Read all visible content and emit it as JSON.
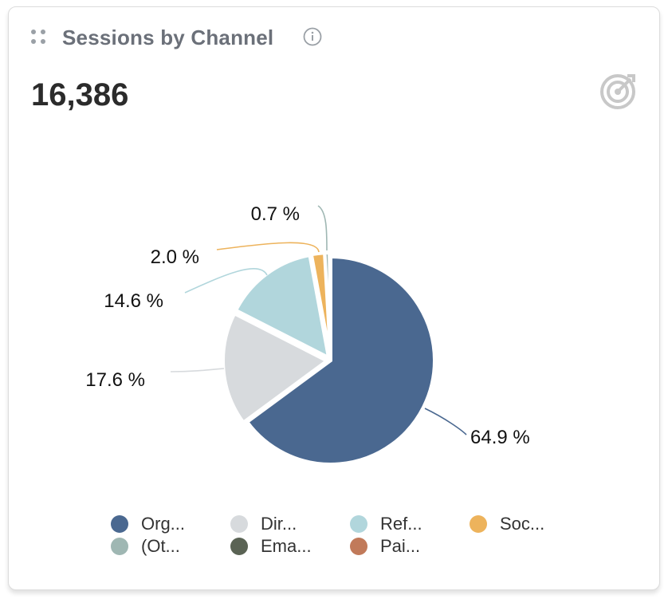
{
  "widget": {
    "title": "Sessions by Channel",
    "total": "16,386"
  },
  "icons": {
    "drag": "drag-handle-icon",
    "info": "info-icon",
    "target": "target-goal-icon"
  },
  "chart_data": {
    "type": "pie",
    "title": "Sessions by Channel",
    "slices": [
      {
        "label": "Org...",
        "value": 64.9,
        "label_text": "64.9 %",
        "color": "#4a6890"
      },
      {
        "label": "Dir...",
        "value": 17.6,
        "label_text": "17.6 %",
        "color": "#d7dadd"
      },
      {
        "label": "Ref...",
        "value": 14.6,
        "label_text": "14.6 %",
        "color": "#b1d6dc"
      },
      {
        "label": "Soc...",
        "value": 2.0,
        "label_text": "2.0 %",
        "color": "#edb35c"
      },
      {
        "label": "(Ot...",
        "value": 0.7,
        "label_text": "0.7 %",
        "color": "#9fb7b3"
      },
      {
        "label": "Ema...",
        "value": 0.1,
        "label_text": "",
        "color": "#5a6354"
      },
      {
        "label": "Pai...",
        "value": 0.1,
        "label_text": "",
        "color": "#c17a5a"
      }
    ],
    "legend": [
      {
        "label": "Org...",
        "color": "#4a6890"
      },
      {
        "label": "Dir...",
        "color": "#d7dadd"
      },
      {
        "label": "Ref...",
        "color": "#b1d6dc"
      },
      {
        "label": "Soc...",
        "color": "#edb35c"
      },
      {
        "label": "(Ot...",
        "color": "#9fb7b3"
      },
      {
        "label": "Ema...",
        "color": "#5a6354"
      },
      {
        "label": "Pai...",
        "color": "#c17a5a"
      }
    ],
    "legend_position": "bottom"
  }
}
